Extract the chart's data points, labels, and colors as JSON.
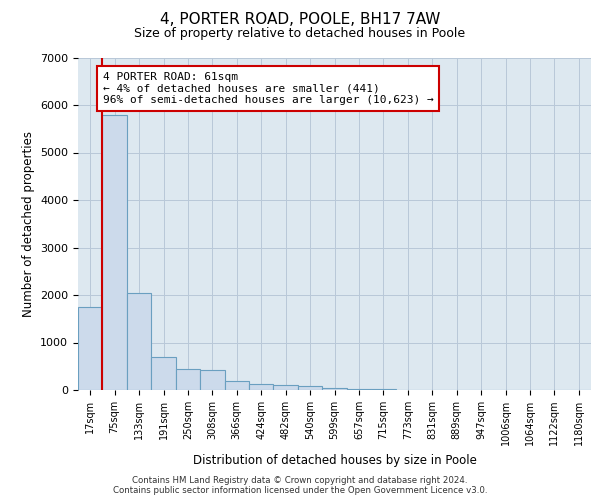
{
  "title_line1": "4, PORTER ROAD, POOLE, BH17 7AW",
  "title_line2": "Size of property relative to detached houses in Poole",
  "xlabel": "Distribution of detached houses by size in Poole",
  "ylabel": "Number of detached properties",
  "bin_labels": [
    "17sqm",
    "75sqm",
    "133sqm",
    "191sqm",
    "250sqm",
    "308sqm",
    "366sqm",
    "424sqm",
    "482sqm",
    "540sqm",
    "599sqm",
    "657sqm",
    "715sqm",
    "773sqm",
    "831sqm",
    "889sqm",
    "947sqm",
    "1006sqm",
    "1064sqm",
    "1122sqm",
    "1180sqm"
  ],
  "bar_values": [
    1750,
    5800,
    2050,
    700,
    450,
    430,
    200,
    130,
    100,
    80,
    50,
    30,
    20,
    10,
    5,
    3,
    2,
    1,
    0,
    0,
    0
  ],
  "bar_color": "#ccdaeb",
  "bar_edge_color": "#6a9fc0",
  "grid_color": "#b8c8d8",
  "background_color": "#dde8f0",
  "vline_color": "#cc0000",
  "annotation_text": "4 PORTER ROAD: 61sqm\n← 4% of detached houses are smaller (441)\n96% of semi-detached houses are larger (10,623) →",
  "annotation_box_color": "#ffffff",
  "annotation_box_edge_color": "#cc0000",
  "ylim": [
    0,
    7000
  ],
  "yticks": [
    0,
    1000,
    2000,
    3000,
    4000,
    5000,
    6000,
    7000
  ],
  "footnote_line1": "Contains HM Land Registry data © Crown copyright and database right 2024.",
  "footnote_line2": "Contains public sector information licensed under the Open Government Licence v3.0."
}
